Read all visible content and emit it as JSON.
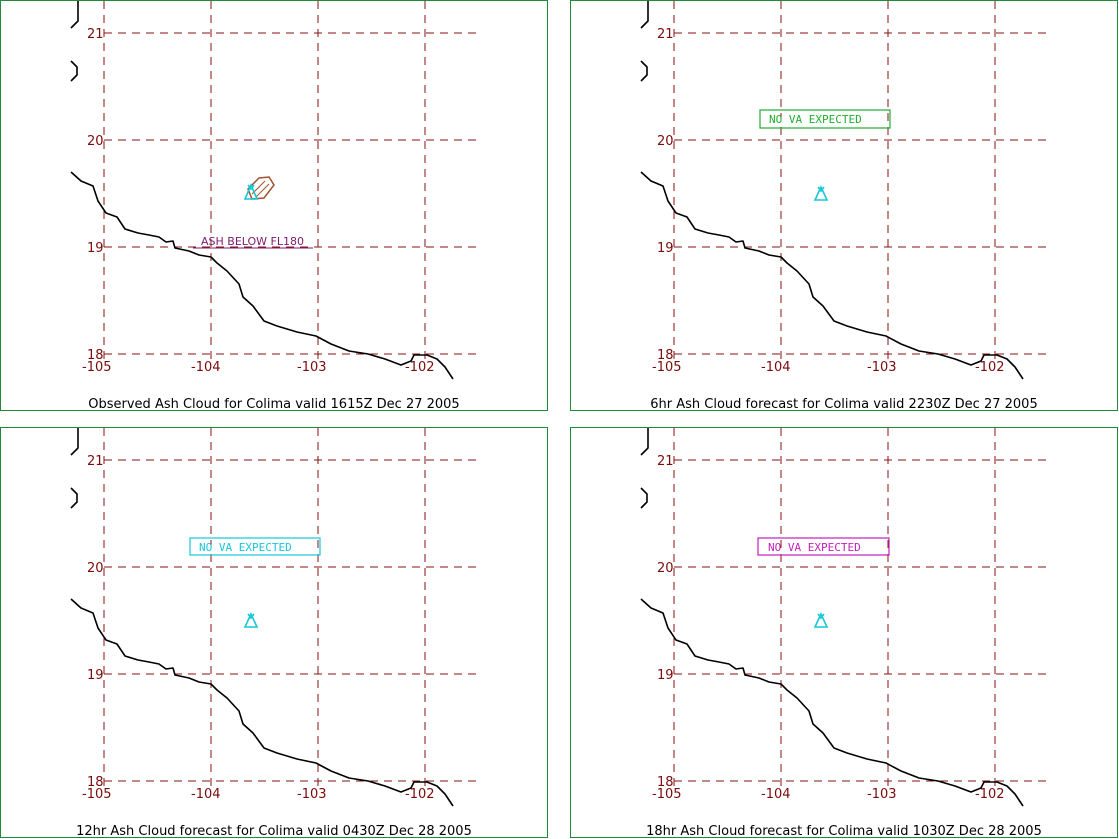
{
  "map": {
    "lat_ticks": [
      "21",
      "20",
      "19",
      "18"
    ],
    "lon_ticks": [
      "-105",
      "-104",
      "-103",
      "-102"
    ],
    "colors": {
      "grid": "#8b1010",
      "coast": "#000000",
      "volcano": "#17c7d8",
      "border": "#1f8a3a"
    }
  },
  "panels": [
    {
      "caption": "Observed Ash Cloud for Colima valid 1615Z Dec 27 2005",
      "label": "ASH BELOW FL180",
      "label_color": "#7d1a6e",
      "ash_color": "#a0522d"
    },
    {
      "caption": "6hr Ash Cloud forecast for Colima valid 2230Z Dec 27 2005",
      "label": "NO VA EXPECTED",
      "label_color": "#1fae2f"
    },
    {
      "caption": "12hr Ash Cloud forecast for Colima valid 0430Z Dec 28 2005",
      "label": "NO VA EXPECTED",
      "label_color": "#17c7d8"
    },
    {
      "caption": "18hr Ash Cloud forecast for Colima valid 1030Z Dec 28 2005",
      "label": "NO VA EXPECTED",
      "label_color": "#c21fbf"
    }
  ]
}
